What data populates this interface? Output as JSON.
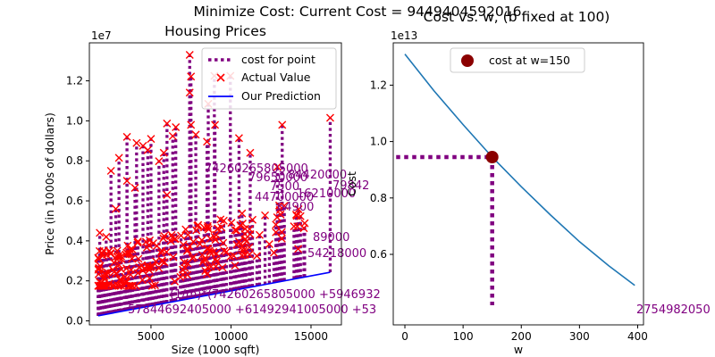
{
  "figure": {
    "suptitle": "Minimize Cost: Current Cost = 9449404592016"
  },
  "chart_data": [
    {
      "type": "scatter",
      "title": "Housing Prices",
      "xlabel": "Size (1000 sqft)",
      "ylabel": "Price (in 1000s of dollars)",
      "x_ticks": [
        5000,
        10000,
        15000
      ],
      "y_ticks": [
        0.0,
        0.2,
        0.4,
        0.6,
        0.8,
        1.0,
        1.2
      ],
      "y_ticks_display": [
        "0.0",
        "0.2",
        "0.4",
        "0.6",
        "0.8",
        "1.0",
        "1.2"
      ],
      "x_ticks_display": [
        "5000",
        "10000",
        "15000"
      ],
      "y_offset_label": "1e7",
      "xlim": [
        1150,
        16900
      ],
      "ylim": [
        -200000,
        13900000
      ],
      "grid": false,
      "legend_position": "top-right",
      "legend": [
        {
          "label": "cost for point",
          "marker": "dotted-line",
          "color": "#800080"
        },
        {
          "label": "Actual Value",
          "marker": "x",
          "color": "#ff0000"
        },
        {
          "label": "Our Prediction",
          "marker": "line",
          "color": "#0000ff"
        }
      ],
      "prediction_line": {
        "w": 150,
        "b": 100,
        "x": [
          1700,
          16200
        ],
        "y": [
          255100,
          2430100
        ]
      },
      "actual_samples": [
        [
          3500,
          9200000
        ],
        [
          7420,
          13300000
        ],
        [
          8960,
          12250000
        ],
        [
          9960,
          12250000
        ],
        [
          7500,
          12215000
        ],
        [
          7420,
          11410000
        ],
        [
          8580,
          10850000
        ],
        [
          13200,
          9800000
        ],
        [
          16200,
          10150000
        ],
        [
          6000,
          9870000
        ],
        [
          9000,
          9800000
        ],
        [
          7500,
          9800000
        ],
        [
          6550,
          9681000
        ],
        [
          4100,
          8890000
        ],
        [
          4500,
          8750000
        ],
        [
          5000,
          9100000
        ],
        [
          6360,
          9240000
        ],
        [
          7800,
          9310000
        ],
        [
          10500,
          9135000
        ],
        [
          8500,
          8960000
        ],
        [
          4800,
          8540000
        ],
        [
          5800,
          8400000
        ],
        [
          11200,
          8400000
        ],
        [
          3000,
          8150000
        ],
        [
          5500,
          7980000
        ],
        [
          12900,
          7700000
        ],
        [
          2500,
          7500000
        ],
        [
          3500,
          7000000
        ],
        [
          4000,
          6650000
        ],
        [
          6000,
          6300000
        ],
        [
          2800,
          5600000
        ],
        [
          2200,
          4200000
        ],
        [
          1800,
          4400000
        ],
        [
          1700,
          3150000
        ],
        [
          2400,
          3500000
        ],
        [
          3000,
          2800000
        ],
        [
          2100,
          2100000
        ],
        [
          1900,
          1900000
        ]
      ],
      "annotations": {
        "formula_line1": "(1/m)*(74260265805000 +5946932",
        "formula_line2": "57844692405000 +61492941005000 +53",
        "formula_line2_right": "2754982050",
        "overlapping_terms": [
          "74260265805000",
          "84420000",
          "79650000",
          "7500",
          "44700000",
          "16210000",
          "79842",
          "64900",
          "89000",
          "54218000"
        ]
      }
    },
    {
      "type": "line",
      "title": "Cost vs. w, (b fixed at 100)",
      "xlabel": "w",
      "ylabel": "Cost",
      "x_ticks": [
        0,
        100,
        200,
        300,
        400
      ],
      "x_ticks_display": [
        "0",
        "100",
        "200",
        "300",
        "400"
      ],
      "y_ticks": [
        0.6,
        0.8,
        1.0,
        1.2
      ],
      "y_ticks_display": [
        "0.6",
        "0.8",
        "1.0",
        "1.2"
      ],
      "y_offset_label": "1e13",
      "xlim": [
        -20,
        410
      ],
      "ylim": [
        0.35,
        1.35
      ],
      "grid": false,
      "legend_position": "top-left",
      "legend": [
        {
          "label": "cost at w=150",
          "marker": "dot",
          "color": "#8b0000"
        }
      ],
      "series": [
        {
          "x": [
            0,
            50,
            100,
            150,
            200,
            250,
            300,
            350,
            395
          ],
          "y": [
            1.31,
            1.18,
            1.06,
            0.945,
            0.84,
            0.74,
            0.645,
            0.56,
            0.49
          ],
          "color": "#1f77b4"
        }
      ],
      "highlight_point": {
        "x": 150,
        "y": 0.9449
      },
      "guide_lines": {
        "color": "#800080",
        "to_x": -15
      }
    }
  ]
}
